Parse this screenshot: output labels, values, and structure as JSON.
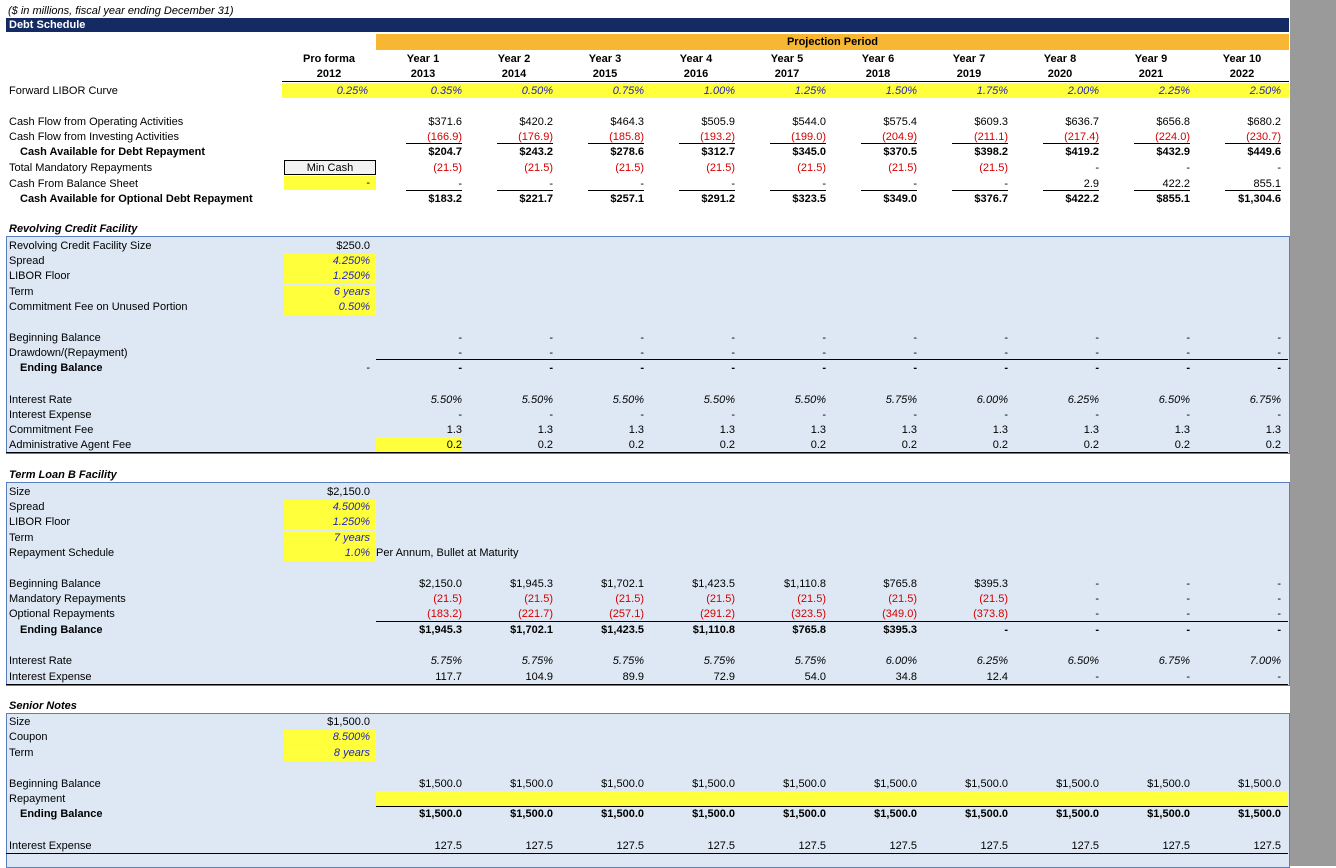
{
  "header": {
    "units_note": "($ in millions, fiscal year ending December 31)",
    "title": "Debt Schedule",
    "projection_period": "Projection Period",
    "proforma_label": "Pro forma",
    "proforma_year": "2012",
    "years": [
      "Year 1",
      "Year 2",
      "Year 3",
      "Year 4",
      "Year 5",
      "Year 6",
      "Year 7",
      "Year 8",
      "Year 9",
      "Year 10"
    ],
    "fiscal_years": [
      "2013",
      "2014",
      "2015",
      "2016",
      "2017",
      "2018",
      "2019",
      "2020",
      "2021",
      "2022"
    ]
  },
  "libor": {
    "label": "Forward LIBOR Curve",
    "proforma": "0.25%",
    "values": [
      "0.35%",
      "0.50%",
      "0.75%",
      "1.00%",
      "1.25%",
      "1.50%",
      "1.75%",
      "2.00%",
      "2.25%",
      "2.50%"
    ]
  },
  "cash": {
    "cfo": {
      "label": "Cash Flow from Operating Activities",
      "values": [
        "$371.6",
        "$420.2",
        "$464.3",
        "$505.9",
        "$544.0",
        "$575.4",
        "$609.3",
        "$636.7",
        "$656.8",
        "$680.2"
      ]
    },
    "cfi": {
      "label": "Cash Flow from Investing Activities",
      "values": [
        "(166.9)",
        "(176.9)",
        "(185.8)",
        "(193.2)",
        "(199.0)",
        "(204.9)",
        "(211.1)",
        "(217.4)",
        "(224.0)",
        "(230.7)"
      ]
    },
    "avail": {
      "label": "Cash Available for Debt Repayment",
      "values": [
        "$204.7",
        "$243.2",
        "$278.6",
        "$312.7",
        "$345.0",
        "$370.5",
        "$398.2",
        "$419.2",
        "$432.9",
        "$449.6"
      ]
    },
    "mandatory": {
      "label": "Total Mandatory Repayments",
      "values": [
        "(21.5)",
        "(21.5)",
        "(21.5)",
        "(21.5)",
        "(21.5)",
        "(21.5)",
        "(21.5)",
        "-",
        "-",
        "-"
      ]
    },
    "min_cash_label": "Min Cash",
    "balance_sheet": {
      "label": "Cash From Balance Sheet",
      "proforma": "-",
      "values": [
        "-",
        "-",
        "-",
        "-",
        "-",
        "-",
        "-",
        "2.9",
        "422.2",
        "855.1"
      ]
    },
    "optional": {
      "label": "Cash Available for Optional Debt Repayment",
      "values": [
        "$183.2",
        "$221.7",
        "$257.1",
        "$291.2",
        "$323.5",
        "$349.0",
        "$376.7",
        "$422.2",
        "$855.1",
        "$1,304.6"
      ]
    }
  },
  "revolver": {
    "title": "Revolving Credit Facility",
    "params": [
      {
        "label": "Revolving Credit Facility Size",
        "value": "$250.0"
      },
      {
        "label": "Spread",
        "value": "4.250%"
      },
      {
        "label": "LIBOR Floor",
        "value": "1.250%"
      },
      {
        "label": "Term",
        "value": "6 years"
      },
      {
        "label": "Commitment Fee on Unused Portion",
        "value": "0.50%"
      }
    ],
    "beginning": {
      "label": "Beginning Balance",
      "values": [
        "-",
        "-",
        "-",
        "-",
        "-",
        "-",
        "-",
        "-",
        "-",
        "-"
      ]
    },
    "drawdown": {
      "label": "Drawdown/(Repayment)",
      "values": [
        "-",
        "-",
        "-",
        "-",
        "-",
        "-",
        "-",
        "-",
        "-",
        "-"
      ]
    },
    "ending": {
      "label": "Ending Balance",
      "proforma": "-",
      "values": [
        "-",
        "-",
        "-",
        "-",
        "-",
        "-",
        "-",
        "-",
        "-",
        "-"
      ]
    },
    "rate": {
      "label": "Interest Rate",
      "values": [
        "5.50%",
        "5.50%",
        "5.50%",
        "5.50%",
        "5.50%",
        "5.75%",
        "6.00%",
        "6.25%",
        "6.50%",
        "6.75%"
      ]
    },
    "expense": {
      "label": "Interest Expense",
      "values": [
        "-",
        "-",
        "-",
        "-",
        "-",
        "-",
        "-",
        "-",
        "-",
        "-"
      ]
    },
    "commitment": {
      "label": "Commitment Fee",
      "values": [
        "1.3",
        "1.3",
        "1.3",
        "1.3",
        "1.3",
        "1.3",
        "1.3",
        "1.3",
        "1.3",
        "1.3"
      ]
    },
    "admin": {
      "label": "Administrative Agent Fee",
      "values": [
        "0.2",
        "0.2",
        "0.2",
        "0.2",
        "0.2",
        "0.2",
        "0.2",
        "0.2",
        "0.2",
        "0.2"
      ]
    }
  },
  "tlb": {
    "title": "Term Loan B Facility",
    "params": [
      {
        "label": "Size",
        "value": "$2,150.0"
      },
      {
        "label": "Spread",
        "value": "4.500%"
      },
      {
        "label": "LIBOR Floor",
        "value": "1.250%"
      },
      {
        "label": "Term",
        "value": "7 years"
      },
      {
        "label": "Repayment Schedule",
        "value": "1.0%"
      }
    ],
    "repayment_note": "Per Annum, Bullet at Maturity",
    "beginning": {
      "label": "Beginning Balance",
      "values": [
        "$2,150.0",
        "$1,945.3",
        "$1,702.1",
        "$1,423.5",
        "$1,110.8",
        "$765.8",
        "$395.3",
        "-",
        "-",
        "-"
      ]
    },
    "mandatory": {
      "label": "Mandatory Repayments",
      "values": [
        "(21.5)",
        "(21.5)",
        "(21.5)",
        "(21.5)",
        "(21.5)",
        "(21.5)",
        "(21.5)",
        "-",
        "-",
        "-"
      ]
    },
    "optional": {
      "label": "Optional Repayments",
      "values": [
        "(183.2)",
        "(221.7)",
        "(257.1)",
        "(291.2)",
        "(323.5)",
        "(349.0)",
        "(373.8)",
        "-",
        "-",
        "-"
      ]
    },
    "ending": {
      "label": "Ending Balance",
      "values": [
        "$1,945.3",
        "$1,702.1",
        "$1,423.5",
        "$1,110.8",
        "$765.8",
        "$395.3",
        "-",
        "-",
        "-",
        "-"
      ]
    },
    "rate": {
      "label": "Interest Rate",
      "values": [
        "5.75%",
        "5.75%",
        "5.75%",
        "5.75%",
        "5.75%",
        "6.00%",
        "6.25%",
        "6.50%",
        "6.75%",
        "7.00%"
      ]
    },
    "expense": {
      "label": "Interest Expense",
      "values": [
        "117.7",
        "104.9",
        "89.9",
        "72.9",
        "54.0",
        "34.8",
        "12.4",
        "-",
        "-",
        "-"
      ]
    }
  },
  "notes": {
    "title": "Senior Notes",
    "params": [
      {
        "label": "Size",
        "value": "$1,500.0"
      },
      {
        "label": "Coupon",
        "value": "8.500%"
      },
      {
        "label": "Term",
        "value": "8 years"
      }
    ],
    "beginning": {
      "label": "Beginning Balance",
      "values": [
        "$1,500.0",
        "$1,500.0",
        "$1,500.0",
        "$1,500.0",
        "$1,500.0",
        "$1,500.0",
        "$1,500.0",
        "$1,500.0",
        "$1,500.0",
        "$1,500.0"
      ]
    },
    "repayment": {
      "label": "Repayment"
    },
    "ending": {
      "label": "Ending Balance",
      "values": [
        "$1,500.0",
        "$1,500.0",
        "$1,500.0",
        "$1,500.0",
        "$1,500.0",
        "$1,500.0",
        "$1,500.0",
        "$1,500.0",
        "$1,500.0",
        "$1,500.0"
      ]
    },
    "expense": {
      "label": "Interest Expense",
      "values": [
        "127.5",
        "127.5",
        "127.5",
        "127.5",
        "127.5",
        "127.5",
        "127.5",
        "127.5",
        "127.5",
        "127.5"
      ]
    }
  },
  "colors": {
    "header_bar": "#142a63",
    "projection_band": "#f7b733",
    "input_yellow": "#ffff3c",
    "section_fill": "#dde8f4",
    "input_blue": "#1f1fc8",
    "negative_red": "#d40000"
  }
}
